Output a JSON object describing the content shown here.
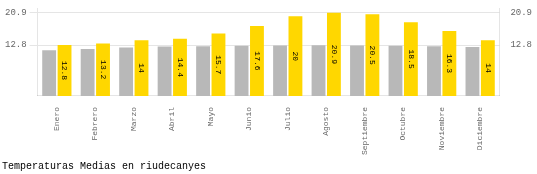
{
  "chart_data": {
    "type": "bar",
    "title": "Temperaturas Medias en riudecanyes",
    "categories": [
      "Enero",
      "Febrero",
      "Marzo",
      "Abril",
      "Mayo",
      "Junio",
      "Julio",
      "Agosto",
      "Septiembre",
      "Octubre",
      "Noviembre",
      "Diciembre"
    ],
    "series": [
      {
        "color": "#B8B8B8",
        "values": [
          11.5,
          11.8,
          12.2,
          12.4,
          12.5,
          12.6,
          12.7,
          12.75,
          12.7,
          12.6,
          12.5,
          12.3
        ]
      },
      {
        "color": "#FFD700",
        "values": [
          12.8,
          13.2,
          14.0,
          14.4,
          15.7,
          17.6,
          20.0,
          20.9,
          20.5,
          18.5,
          16.3,
          14.0
        ],
        "data_labels": true
      }
    ],
    "ylim": [
      0,
      22.0
    ],
    "yticks": [
      12.8,
      20.9
    ],
    "y2lim": [
      0,
      22.0
    ],
    "y2ticks": [
      12.8,
      20.9
    ],
    "grid": true
  }
}
